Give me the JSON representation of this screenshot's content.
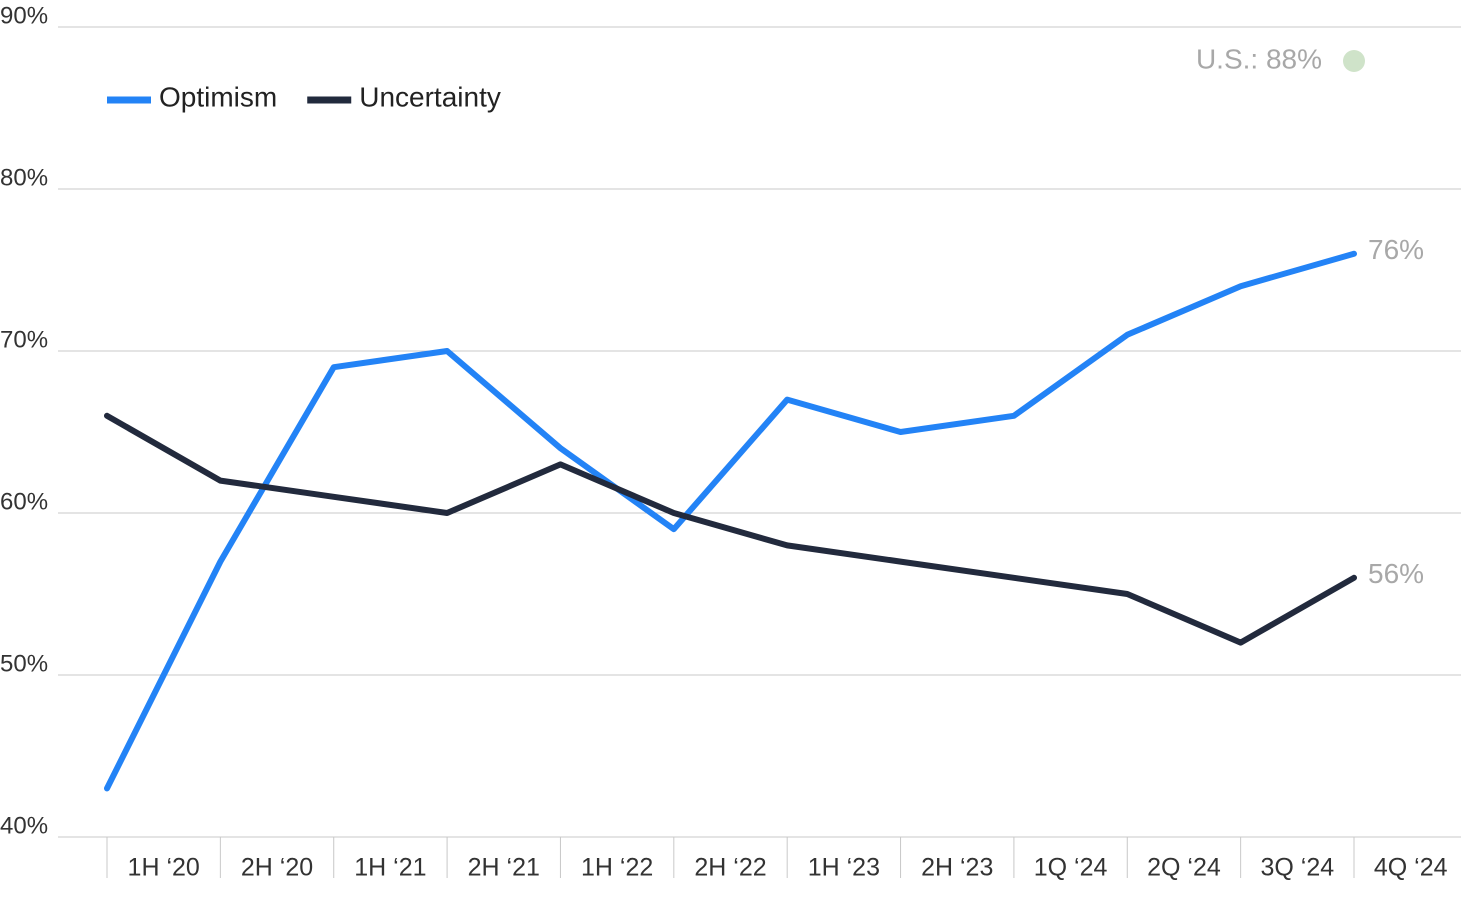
{
  "chart_data": {
    "type": "line",
    "categories": [
      "1H ‘20",
      "2H ‘20",
      "1H ‘21",
      "2H ‘21",
      "1H ‘22",
      "2H ‘22",
      "1H ‘23",
      "2H ‘23",
      "1Q ‘24",
      "2Q ‘24",
      "3Q ‘24",
      "4Q ‘24"
    ],
    "series": [
      {
        "name": "Optimism",
        "color": "#2383f6",
        "values": [
          43,
          57,
          69,
          70,
          64,
          59,
          67,
          65,
          66,
          71,
          74,
          76
        ],
        "value_labels": [
          null,
          null,
          null,
          null,
          null,
          null,
          null,
          null,
          null,
          null,
          null,
          "76%"
        ]
      },
      {
        "name": "Uncertainty",
        "color": "#222a3d",
        "values": [
          66,
          62,
          61,
          60,
          63,
          60,
          58,
          57,
          56,
          55,
          52,
          56
        ],
        "value_labels": [
          null,
          null,
          null,
          null,
          null,
          null,
          null,
          null,
          null,
          null,
          null,
          "56%"
        ]
      }
    ],
    "ylim": [
      40,
      90
    ],
    "yticks": [
      {
        "value": 40,
        "label": "40%"
      },
      {
        "value": 50,
        "label": "50%"
      },
      {
        "value": 60,
        "label": "60%"
      },
      {
        "value": 70,
        "label": "70%"
      },
      {
        "value": 80,
        "label": "80%"
      },
      {
        "value": 90,
        "label": "90%"
      }
    ],
    "grid": true,
    "annotation": "U.S.: 88%",
    "annotation_color": "#cfe3c9"
  }
}
